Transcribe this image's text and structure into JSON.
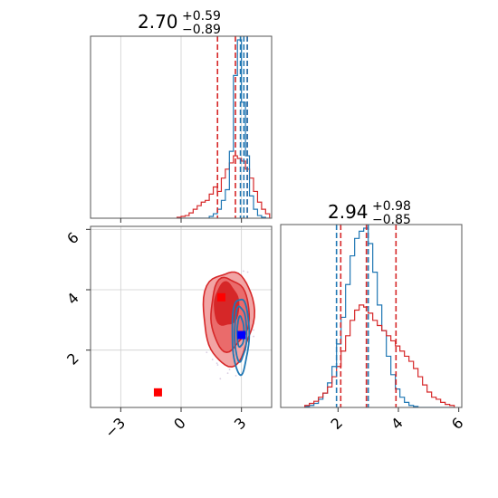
{
  "chart_data": [
    {
      "type": "histogram",
      "panel": "marginal-x",
      "title": {
        "value": "2.70",
        "plus": "+0.59",
        "minus": "−0.89"
      },
      "xlim": [
        -4.5,
        4.5
      ],
      "bin_edges": [
        -0.2,
        0.0,
        0.2,
        0.4,
        0.6,
        0.8,
        1.0,
        1.2,
        1.4,
        1.6,
        1.8,
        2.0,
        2.2,
        2.4,
        2.6,
        2.8,
        3.0,
        3.2,
        3.4,
        3.6,
        3.8,
        4.0,
        4.2,
        4.4
      ],
      "series": [
        {
          "color": "#d62728",
          "counts": [
            1,
            2,
            3,
            6,
            10,
            14,
            18,
            20,
            27,
            35,
            30,
            45,
            55,
            62,
            70,
            67,
            64,
            55,
            45,
            30,
            18,
            10,
            5
          ]
        },
        {
          "color": "#1f77b4",
          "counts": [
            0,
            0,
            0,
            0,
            0,
            0,
            0,
            0,
            2,
            5,
            10,
            20,
            32,
            75,
            160,
            200,
            130,
            70,
            25,
            10,
            3,
            1,
            0
          ]
        }
      ],
      "lines": [
        {
          "color": "#d62728",
          "x": [
            1.81,
            2.7,
            3.29
          ]
        },
        {
          "color": "#1f77b4",
          "x": [
            2.95,
            3.12,
            3.29
          ]
        }
      ]
    },
    {
      "type": "histogram",
      "panel": "marginal-y",
      "title": {
        "value": "2.94",
        "plus": "+0.98",
        "minus": "−0.85"
      },
      "xlim": [
        0.1,
        6.1
      ],
      "xticks": [
        "2",
        "4",
        "6"
      ],
      "xtick_values": [
        2,
        4,
        6
      ],
      "bin_edges": [
        0.9,
        1.05,
        1.2,
        1.35,
        1.5,
        1.65,
        1.8,
        1.95,
        2.1,
        2.25,
        2.4,
        2.55,
        2.7,
        2.85,
        3.0,
        3.15,
        3.3,
        3.45,
        3.6,
        3.75,
        3.9,
        4.05,
        4.2,
        4.35,
        4.5,
        4.65,
        4.8,
        4.95,
        5.1,
        5.25,
        5.4,
        5.55,
        5.7,
        5.85
      ],
      "series": [
        {
          "color": "#1f77b4",
          "counts": [
            1,
            2,
            4,
            8,
            14,
            24,
            40,
            62,
            88,
            120,
            148,
            165,
            172,
            175,
            160,
            132,
            100,
            75,
            50,
            32,
            18,
            10,
            5,
            2,
            1,
            0,
            0,
            0,
            0,
            0,
            0,
            0,
            0
          ]
        },
        {
          "color": "#d62728",
          "counts": [
            2,
            4,
            6,
            10,
            14,
            20,
            30,
            40,
            55,
            70,
            85,
            95,
            100,
            98,
            92,
            85,
            80,
            75,
            70,
            65,
            60,
            55,
            50,
            45,
            38,
            30,
            22,
            15,
            10,
            8,
            5,
            3,
            2
          ]
        }
      ],
      "lines": [
        {
          "color": "#1f77b4",
          "x": [
            1.95,
            3.0
          ]
        },
        {
          "color": "#d62728",
          "x": [
            2.09,
            2.94,
            3.92
          ]
        }
      ]
    },
    {
      "type": "contour",
      "panel": "joint",
      "xlim": [
        -4.5,
        4.5
      ],
      "ylim": [
        0.1,
        6.1
      ],
      "xticks": [
        "−3",
        "0",
        "3"
      ],
      "xtick_values": [
        -3,
        0,
        3
      ],
      "yticks": [
        "2",
        "4",
        "6"
      ],
      "ytick_values": [
        2,
        4,
        6
      ],
      "red_contours": [
        {
          "level": "outer",
          "cx": 2.35,
          "cy": 3.1,
          "rx": 1.25,
          "ry": 1.55,
          "fill": "#f2a4a4"
        },
        {
          "level": "middle",
          "cx": 2.4,
          "cy": 3.2,
          "rx": 0.95,
          "ry": 1.2,
          "fill": "#ea6b6b"
        },
        {
          "level": "inner",
          "cx": 2.25,
          "cy": 3.5,
          "rx": 0.6,
          "ry": 0.7,
          "fill": "#d62728"
        }
      ],
      "blue_contours": [
        {
          "level": "outer",
          "cx": 2.95,
          "cy": 2.5,
          "rx": 0.42,
          "ry": 1.25
        },
        {
          "level": "middle",
          "cx": 2.95,
          "cy": 2.55,
          "rx": 0.3,
          "ry": 0.9
        },
        {
          "level": "inner",
          "cx": 2.95,
          "cy": 2.6,
          "rx": 0.17,
          "ry": 0.5
        }
      ],
      "markers": [
        {
          "color": "#ff0000",
          "x": -1.15,
          "y": 0.6,
          "shape": "square"
        },
        {
          "color": "#ff0000",
          "x": 2.0,
          "y": 3.75,
          "shape": "square"
        },
        {
          "color": "#0000ff",
          "x": 3.0,
          "y": 2.5,
          "shape": "square"
        }
      ]
    }
  ]
}
